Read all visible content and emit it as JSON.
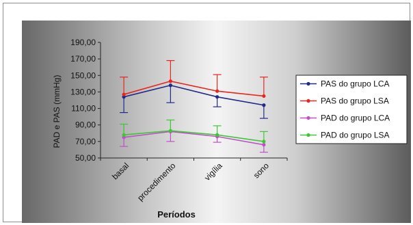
{
  "chart_data": {
    "type": "line",
    "title": "",
    "xlabel": "Períodos",
    "ylabel": "PAD e PAS (mmHg)",
    "categories": [
      "basal",
      "procedimento",
      "vigília",
      "sono"
    ],
    "y_ticks": [
      "50,00",
      "70,00",
      "90,00",
      "110,00",
      "130,00",
      "150,00",
      "170,00",
      "190,00"
    ],
    "ylim": [
      50,
      190
    ],
    "grid": false,
    "legend_position": "right",
    "error_bars": "one-sided (away from the other series)",
    "series": [
      {
        "name": "PAS do grupo LCA",
        "color": "#1f2a8a",
        "values": [
          124,
          138,
          124,
          114
        ],
        "error": [
          19,
          21,
          12,
          16
        ],
        "error_direction": "down"
      },
      {
        "name": "PAS do grupo LSA",
        "color": "#e8261c",
        "values": [
          127,
          143,
          131,
          125
        ],
        "error": [
          21,
          25,
          20,
          23
        ],
        "error_direction": "up"
      },
      {
        "name": "PAD do grupo LCA",
        "color": "#c04fc8",
        "values": [
          75,
          82,
          76,
          66
        ],
        "error": [
          11,
          12,
          7,
          9
        ],
        "error_direction": "down"
      },
      {
        "name": "PAD do grupo LSA",
        "color": "#3cc832",
        "values": [
          78,
          83,
          78,
          70
        ],
        "error": [
          13,
          13,
          11,
          12
        ],
        "error_direction": "up"
      }
    ]
  }
}
